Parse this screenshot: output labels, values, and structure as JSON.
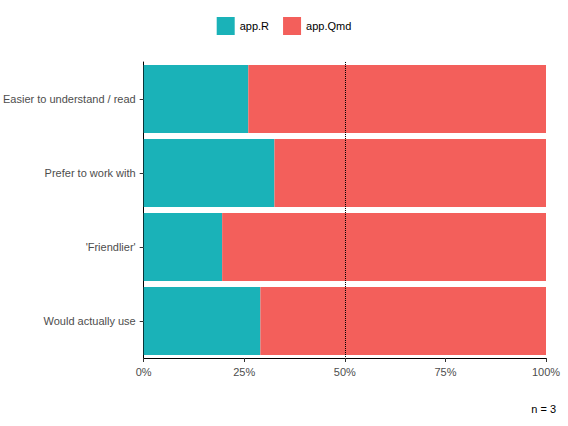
{
  "chart_data": {
    "type": "bar",
    "orientation": "horizontal",
    "stacked": true,
    "categories": [
      "Easier to understand / read",
      "Prefer to work with",
      "'Friendlier'",
      "Would actually use"
    ],
    "series": [
      {
        "name": "app.R",
        "color": "#1AB2B8",
        "values": [
          26,
          32.5,
          19.5,
          29
        ]
      },
      {
        "name": "app.Qmd",
        "color": "#F35F5B",
        "values": [
          74,
          67.5,
          80.5,
          71
        ]
      }
    ],
    "xlim": [
      0,
      100
    ],
    "xticks": [
      {
        "value": 0,
        "label": "0%"
      },
      {
        "value": 25,
        "label": "25%"
      },
      {
        "value": 50,
        "label": "50%"
      },
      {
        "value": 75,
        "label": "75%"
      },
      {
        "value": 100,
        "label": "100%"
      }
    ],
    "reference_x": 50,
    "caption": "n = 3",
    "legend": "top",
    "grid": false
  }
}
